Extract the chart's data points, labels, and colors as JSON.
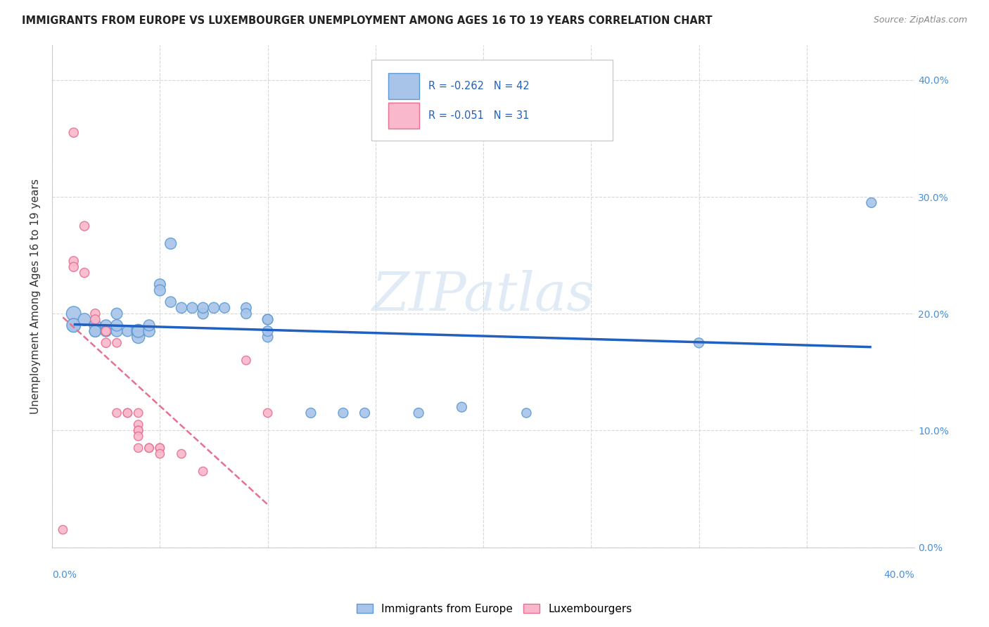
{
  "title": "IMMIGRANTS FROM EUROPE VS LUXEMBOURGER UNEMPLOYMENT AMONG AGES 16 TO 19 YEARS CORRELATION CHART",
  "source": "Source: ZipAtlas.com",
  "ylabel": "Unemployment Among Ages 16 to 19 years",
  "legend_blue_label": "Immigrants from Europe",
  "legend_pink_label": "Luxembourgers",
  "legend_blue_R": "-0.262",
  "legend_blue_N": "42",
  "legend_pink_R": "-0.051",
  "legend_pink_N": "31",
  "blue_fill": "#a8c4e8",
  "pink_fill": "#f9b8cb",
  "blue_edge": "#5b9bd5",
  "pink_edge": "#e87090",
  "blue_line_color": "#2060c0",
  "pink_line_color": "#e87090",
  "watermark": "ZIPatlas",
  "blue_points": [
    [
      0.01,
      0.2
    ],
    [
      0.01,
      0.19
    ],
    [
      0.01,
      0.19
    ],
    [
      0.015,
      0.195
    ],
    [
      0.02,
      0.19
    ],
    [
      0.02,
      0.185
    ],
    [
      0.02,
      0.185
    ],
    [
      0.025,
      0.19
    ],
    [
      0.025,
      0.185
    ],
    [
      0.03,
      0.185
    ],
    [
      0.03,
      0.2
    ],
    [
      0.03,
      0.19
    ],
    [
      0.035,
      0.185
    ],
    [
      0.04,
      0.185
    ],
    [
      0.04,
      0.18
    ],
    [
      0.04,
      0.185
    ],
    [
      0.045,
      0.185
    ],
    [
      0.045,
      0.19
    ],
    [
      0.05,
      0.225
    ],
    [
      0.05,
      0.22
    ],
    [
      0.055,
      0.21
    ],
    [
      0.06,
      0.205
    ],
    [
      0.065,
      0.205
    ],
    [
      0.07,
      0.2
    ],
    [
      0.07,
      0.205
    ],
    [
      0.075,
      0.205
    ],
    [
      0.08,
      0.205
    ],
    [
      0.09,
      0.205
    ],
    [
      0.09,
      0.2
    ],
    [
      0.1,
      0.18
    ],
    [
      0.1,
      0.195
    ],
    [
      0.1,
      0.195
    ],
    [
      0.1,
      0.185
    ],
    [
      0.055,
      0.26
    ],
    [
      0.12,
      0.115
    ],
    [
      0.135,
      0.115
    ],
    [
      0.145,
      0.115
    ],
    [
      0.17,
      0.115
    ],
    [
      0.19,
      0.12
    ],
    [
      0.22,
      0.115
    ],
    [
      0.3,
      0.175
    ],
    [
      0.38,
      0.295
    ]
  ],
  "pink_points": [
    [
      0.005,
      0.015
    ],
    [
      0.01,
      0.355
    ],
    [
      0.01,
      0.245
    ],
    [
      0.01,
      0.24
    ],
    [
      0.015,
      0.275
    ],
    [
      0.015,
      0.235
    ],
    [
      0.02,
      0.2
    ],
    [
      0.02,
      0.195
    ],
    [
      0.025,
      0.185
    ],
    [
      0.025,
      0.185
    ],
    [
      0.025,
      0.185
    ],
    [
      0.025,
      0.175
    ],
    [
      0.03,
      0.175
    ],
    [
      0.03,
      0.115
    ],
    [
      0.035,
      0.115
    ],
    [
      0.035,
      0.115
    ],
    [
      0.04,
      0.115
    ],
    [
      0.04,
      0.105
    ],
    [
      0.04,
      0.1
    ],
    [
      0.04,
      0.1
    ],
    [
      0.04,
      0.095
    ],
    [
      0.04,
      0.085
    ],
    [
      0.045,
      0.085
    ],
    [
      0.045,
      0.085
    ],
    [
      0.05,
      0.085
    ],
    [
      0.05,
      0.085
    ],
    [
      0.05,
      0.08
    ],
    [
      0.06,
      0.08
    ],
    [
      0.07,
      0.065
    ],
    [
      0.09,
      0.16
    ],
    [
      0.1,
      0.115
    ]
  ],
  "blue_sizes": [
    220,
    180,
    200,
    160,
    150,
    140,
    140,
    130,
    130,
    130,
    130,
    140,
    120,
    200,
    170,
    160,
    140,
    130,
    130,
    130,
    120,
    120,
    120,
    120,
    120,
    120,
    110,
    110,
    110,
    110,
    110,
    110,
    110,
    130,
    100,
    100,
    100,
    100,
    100,
    90,
    100,
    100
  ],
  "pink_sizes": [
    80,
    90,
    90,
    90,
    90,
    90,
    90,
    90,
    90,
    90,
    90,
    90,
    80,
    80,
    80,
    80,
    80,
    80,
    80,
    80,
    80,
    80,
    80,
    80,
    80,
    80,
    80,
    80,
    80,
    80,
    80
  ],
  "x_range": [
    0.0,
    0.4
  ],
  "y_range": [
    0.0,
    0.43
  ],
  "x_ticks": [
    0.0,
    0.05,
    0.1,
    0.15,
    0.2,
    0.25,
    0.3,
    0.35,
    0.4
  ],
  "y_ticks": [
    0.0,
    0.1,
    0.2,
    0.3,
    0.4
  ],
  "y_tick_labels": [
    "0.0%",
    "10.0%",
    "20.0%",
    "30.0%",
    "40.0%"
  ],
  "grid_color": "#d8d8d8",
  "spine_color": "#cccccc"
}
